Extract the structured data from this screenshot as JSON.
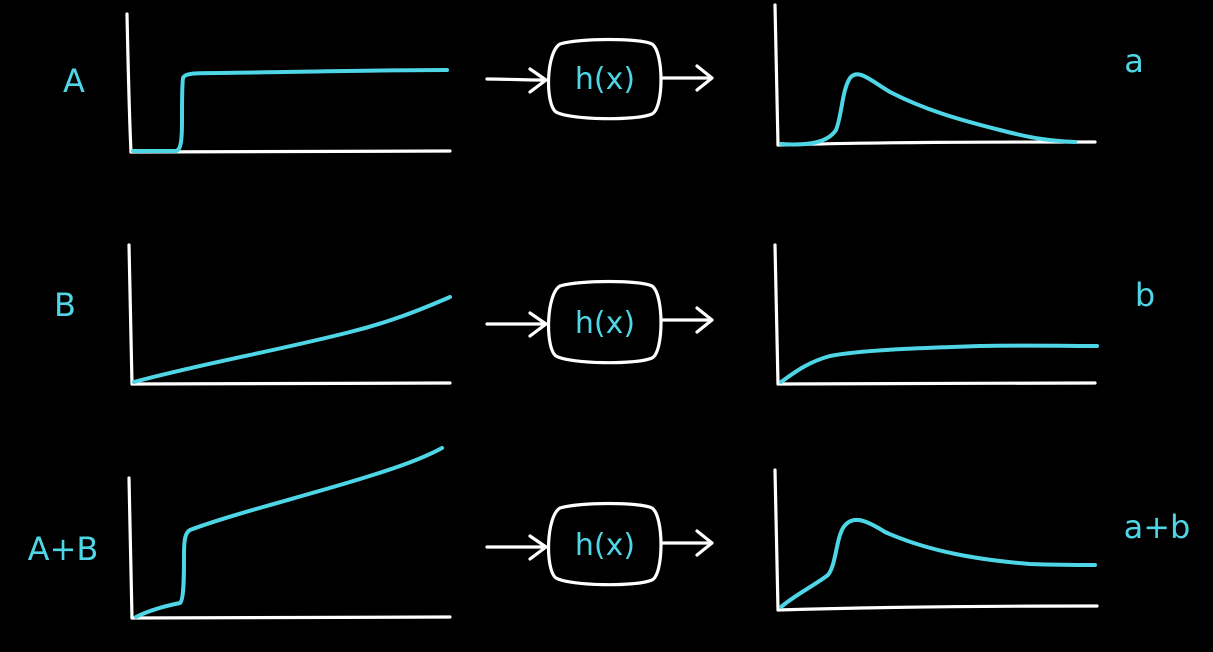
{
  "colors": {
    "background": "#000000",
    "line": "#ffffff",
    "signal": "#4fd6e6"
  },
  "rows": [
    {
      "input_label": "A",
      "system_label": "h(x)",
      "output_label": "a",
      "input_curve": "step",
      "output_curve": "impulse-decay-to-zero"
    },
    {
      "input_label": "B",
      "system_label": "h(x)",
      "output_label": "b",
      "input_curve": "ramp",
      "output_curve": "rise-to-plateau"
    },
    {
      "input_label": "A+B",
      "system_label": "h(x)",
      "output_label": "a+b",
      "input_curve": "ramp-plus-step",
      "output_curve": "peak-decay-to-plateau"
    }
  ]
}
